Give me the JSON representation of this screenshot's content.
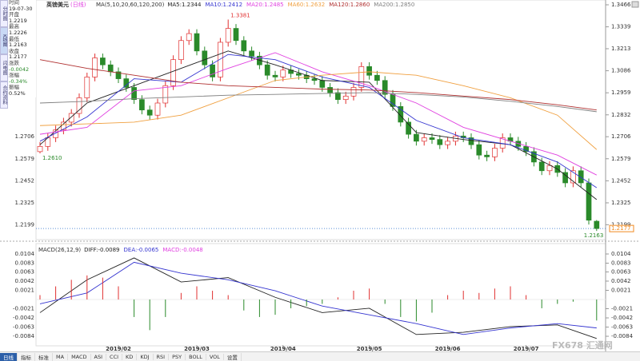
{
  "tabs": [
    "分时图",
    "K线图",
    "闪电图",
    "合约资料"
  ],
  "info_panel": {
    "rows": [
      [
        "时间",
        "19-07-30"
      ],
      [
        "开盘",
        "1.2219"
      ],
      [
        "最高",
        "1.2226"
      ],
      [
        "最低",
        "1.2163"
      ],
      [
        "收盘",
        "1.2177"
      ],
      [
        "涨跌",
        "-0.0042"
      ],
      [
        "涨幅",
        "-0.34%"
      ],
      [
        "振幅",
        "0.52%"
      ]
    ]
  },
  "toolbar": [
    "日线",
    "指标",
    "标准",
    "MA",
    "MACD",
    "ASI",
    "CCI",
    "KD",
    "KDJ",
    "RSI",
    "PSY",
    "BOLL",
    "VOL",
    "设置"
  ],
  "watermark": [
    "FX678",
    "汇通网"
  ],
  "chart_data": [
    {
      "type": "candlestick",
      "title": "英镑美元",
      "subtitle": "(日线)",
      "indicator": "MA(5,10,20,60,120,200)",
      "up_color": "#e03030",
      "down_color": "#2a8a2a",
      "categories": [
        null,
        null,
        null,
        null,
        null,
        null,
        null,
        null,
        null,
        null,
        "2019/02",
        null,
        null,
        null,
        null,
        null,
        null,
        null,
        null,
        null,
        "2019/03",
        null,
        null,
        null,
        null,
        null,
        null,
        null,
        null,
        null,
        null,
        "2019/04",
        null,
        null,
        null,
        null,
        null,
        null,
        null,
        null,
        null,
        null,
        "2019/05",
        null,
        null,
        null,
        null,
        null,
        null,
        null,
        null,
        null,
        "2019/06",
        null,
        null,
        null,
        null,
        null,
        null,
        null,
        null,
        null,
        "2019/07",
        null,
        null,
        null,
        null,
        null,
        null,
        null,
        null,
        null
      ],
      "open": [
        1.262,
        1.265,
        1.27,
        1.2745,
        1.279,
        1.284,
        1.293,
        1.305,
        1.316,
        1.312,
        1.308,
        1.304,
        1.299,
        1.292,
        1.286,
        1.283,
        1.29,
        1.3,
        1.315,
        1.326,
        1.33,
        1.32,
        1.312,
        1.305,
        1.325,
        1.333,
        1.326,
        1.32,
        1.317,
        1.312,
        1.306,
        1.305,
        1.309,
        1.307,
        1.306,
        1.304,
        1.303,
        1.299,
        1.296,
        1.292,
        1.294,
        1.299,
        1.311,
        1.306,
        1.303,
        1.295,
        1.288,
        1.279,
        1.272,
        1.268,
        1.27,
        1.269,
        1.266,
        1.268,
        1.271,
        1.27,
        1.266,
        1.26,
        1.259,
        1.264,
        1.27,
        1.268,
        1.265,
        1.262,
        1.256,
        1.251,
        1.254,
        1.25,
        1.244,
        1.251,
        1.244,
        1.2219
      ],
      "high": [
        1.2675,
        1.2725,
        1.277,
        1.2815,
        1.2865,
        1.2955,
        1.3075,
        1.3185,
        1.3185,
        1.3145,
        1.3105,
        1.3065,
        1.3015,
        1.2945,
        1.2885,
        1.2925,
        1.3025,
        1.3175,
        1.3285,
        1.3325,
        1.3325,
        1.3225,
        1.3145,
        1.3275,
        1.3381,
        1.3355,
        1.3285,
        1.3225,
        1.3195,
        1.3145,
        1.3085,
        1.3115,
        1.3115,
        1.3095,
        1.3085,
        1.3065,
        1.3055,
        1.3015,
        1.2985,
        1.2965,
        1.3015,
        1.3135,
        1.3135,
        1.3085,
        1.3055,
        1.2975,
        1.2905,
        1.2815,
        1.2745,
        1.2725,
        1.2725,
        1.2715,
        1.2705,
        1.2735,
        1.2735,
        1.2725,
        1.2685,
        1.2625,
        1.2665,
        1.2725,
        1.2725,
        1.2705,
        1.2675,
        1.2645,
        1.2585,
        1.2565,
        1.2565,
        1.2525,
        1.2535,
        1.2535,
        1.2465,
        1.2226
      ],
      "low": [
        1.261,
        1.2625,
        1.2675,
        1.272,
        1.2765,
        1.2815,
        1.2905,
        1.3025,
        1.3095,
        1.3055,
        1.3015,
        1.2965,
        1.2895,
        1.2835,
        1.2805,
        1.2805,
        1.2875,
        1.2975,
        1.3125,
        1.3235,
        1.3175,
        1.3095,
        1.3025,
        1.3025,
        1.3225,
        1.3235,
        1.3175,
        1.3145,
        1.3095,
        1.3035,
        1.3025,
        1.3025,
        1.3045,
        1.3035,
        1.3015,
        1.3005,
        1.2965,
        1.2935,
        1.2895,
        1.2895,
        1.2915,
        1.2965,
        1.3035,
        1.3005,
        1.2925,
        1.2855,
        1.2765,
        1.2695,
        1.2655,
        1.2655,
        1.2665,
        1.2635,
        1.2635,
        1.2655,
        1.2675,
        1.2635,
        1.2575,
        1.2565,
        1.2565,
        1.2615,
        1.2655,
        1.2625,
        1.2595,
        1.2535,
        1.2485,
        1.2485,
        1.2475,
        1.2415,
        1.2415,
        1.2415,
        1.22,
        1.2163
      ],
      "close": [
        1.265,
        1.27,
        1.2745,
        1.279,
        1.284,
        1.293,
        1.305,
        1.316,
        1.312,
        1.308,
        1.304,
        1.299,
        1.292,
        1.286,
        1.283,
        1.29,
        1.3,
        1.315,
        1.326,
        1.33,
        1.32,
        1.312,
        1.305,
        1.325,
        1.333,
        1.326,
        1.32,
        1.317,
        1.312,
        1.306,
        1.305,
        1.309,
        1.307,
        1.306,
        1.304,
        1.303,
        1.299,
        1.296,
        1.292,
        1.294,
        1.299,
        1.311,
        1.306,
        1.303,
        1.295,
        1.288,
        1.279,
        1.272,
        1.268,
        1.27,
        1.269,
        1.266,
        1.268,
        1.271,
        1.27,
        1.266,
        1.26,
        1.259,
        1.264,
        1.27,
        1.268,
        1.265,
        1.262,
        1.256,
        1.251,
        1.254,
        1.25,
        1.244,
        1.251,
        1.244,
        1.2225,
        1.2177
      ],
      "series": [
        {
          "name": "MA5:1.2344",
          "color": "#222222",
          "x": [
            0,
            6,
            12,
            18,
            24,
            30,
            36,
            42,
            48,
            54,
            60,
            66,
            71
          ],
          "values": [
            1.266,
            1.29,
            1.3,
            1.31,
            1.32,
            1.312,
            1.303,
            1.302,
            1.273,
            1.269,
            1.266,
            1.252,
            1.2344
          ]
        },
        {
          "name": "MA10:1.2412",
          "color": "#3535d0",
          "x": [
            0,
            6,
            12,
            18,
            24,
            30,
            36,
            42,
            48,
            54,
            60,
            66,
            71
          ],
          "values": [
            1.268,
            1.282,
            1.304,
            1.302,
            1.318,
            1.315,
            1.305,
            1.299,
            1.28,
            1.27,
            1.266,
            1.256,
            1.2412
          ]
        },
        {
          "name": "MA20:1.2485",
          "color": "#e040e0",
          "x": [
            0,
            6,
            12,
            18,
            24,
            30,
            36,
            42,
            48,
            54,
            60,
            66,
            71
          ],
          "values": [
            1.272,
            1.276,
            1.297,
            1.3,
            1.31,
            1.319,
            1.308,
            1.3,
            1.29,
            1.276,
            1.268,
            1.26,
            1.2485
          ]
        },
        {
          "name": "MA60:1.2632",
          "color": "#f0a040",
          "x": [
            0,
            6,
            12,
            18,
            24,
            30,
            36,
            42,
            48,
            54,
            60,
            66,
            71
          ],
          "values": [
            1.277,
            1.278,
            1.279,
            1.283,
            1.293,
            1.303,
            1.306,
            1.308,
            1.306,
            1.3,
            1.293,
            1.283,
            1.2632
          ]
        },
        {
          "name": "MA120:1.2860",
          "color": "#b03030",
          "x": [
            0,
            6,
            12,
            18,
            24,
            30,
            36,
            42,
            48,
            54,
            60,
            66,
            71
          ],
          "values": [
            1.315,
            1.31,
            1.306,
            1.302,
            1.3,
            1.299,
            1.298,
            1.2975,
            1.296,
            1.294,
            1.292,
            1.289,
            1.286
          ]
        },
        {
          "name": "MA200:1.2850",
          "color": "#808080",
          "x": [
            0,
            6,
            12,
            18,
            24,
            30,
            36,
            42,
            48,
            54,
            60,
            66,
            71
          ],
          "values": [
            1.29,
            1.291,
            1.2925,
            1.2935,
            1.2945,
            1.295,
            1.2955,
            1.296,
            1.295,
            1.2935,
            1.291,
            1.288,
            1.285
          ]
        }
      ],
      "annotations": [
        {
          "value": 1.3381,
          "label": "1.3381"
        },
        {
          "value": 1.261,
          "label": "1.2610"
        },
        {
          "value": 1.2163,
          "label": "1.2163"
        }
      ],
      "last_price": {
        "value": 1.2177,
        "label": "1.2177"
      },
      "ylim": [
        1.215,
        1.3466
      ],
      "yticks": [
        1.3466,
        1.3339,
        1.3213,
        1.3086,
        1.2959,
        1.2832,
        1.2706,
        1.2579,
        1.2452,
        1.2325,
        1.2199
      ]
    },
    {
      "type": "macd",
      "indicator": "MACD(26,12,9)",
      "up_color": "#e03030",
      "down_color": "#2a8a2a",
      "series": [
        {
          "name": "DIFF:-0.0089",
          "color": "#222222",
          "x": [
            0,
            6,
            12,
            18,
            24,
            30,
            36,
            42,
            48,
            54,
            60,
            66,
            71
          ],
          "values": [
            -0.003,
            0.0045,
            0.0095,
            0.004,
            0.005,
            0.0005,
            -0.003,
            -0.002,
            -0.008,
            -0.0075,
            -0.0062,
            -0.0058,
            -0.0089
          ]
        },
        {
          "name": "DEA:-0.0065",
          "color": "#3535d0",
          "x": [
            0,
            6,
            12,
            18,
            24,
            30,
            36,
            42,
            48,
            54,
            60,
            66,
            71
          ],
          "values": [
            -0.001,
            0.0015,
            0.0085,
            0.006,
            0.0045,
            0.002,
            -0.0015,
            -0.0035,
            -0.0055,
            -0.008,
            -0.0065,
            -0.0055,
            -0.0065
          ]
        },
        {
          "name": "MACD:-0.0048",
          "color": "#e040e0",
          "type": "bar",
          "x": [
            0,
            2,
            4,
            6,
            8,
            10,
            12,
            14,
            16,
            18,
            20,
            22,
            24,
            26,
            28,
            30,
            32,
            34,
            36,
            38,
            40,
            42,
            44,
            46,
            48,
            50,
            52,
            54,
            56,
            58,
            60,
            62,
            64,
            66,
            68,
            71
          ],
          "values": [
            0.001,
            0.003,
            0.0045,
            0.0055,
            0.005,
            0.003,
            -0.004,
            -0.007,
            -0.004,
            0.0015,
            0.003,
            0.002,
            0.001,
            -0.0025,
            -0.004,
            -0.0035,
            -0.002,
            -0.0015,
            -0.001,
            0.0005,
            0.002,
            0.0025,
            -0.001,
            -0.004,
            -0.005,
            -0.003,
            0.001,
            0.002,
            0.0015,
            0.0025,
            0.003,
            0.001,
            -0.002,
            -0.001,
            -0.0005,
            -0.0048
          ]
        }
      ],
      "ylim": [
        -0.0104,
        0.0104
      ],
      "yticks": [
        0.0104,
        0.0083,
        0.0063,
        0.0042,
        0.0021,
        -0.0021,
        -0.0042,
        -0.0063,
        -0.0084
      ]
    }
  ]
}
